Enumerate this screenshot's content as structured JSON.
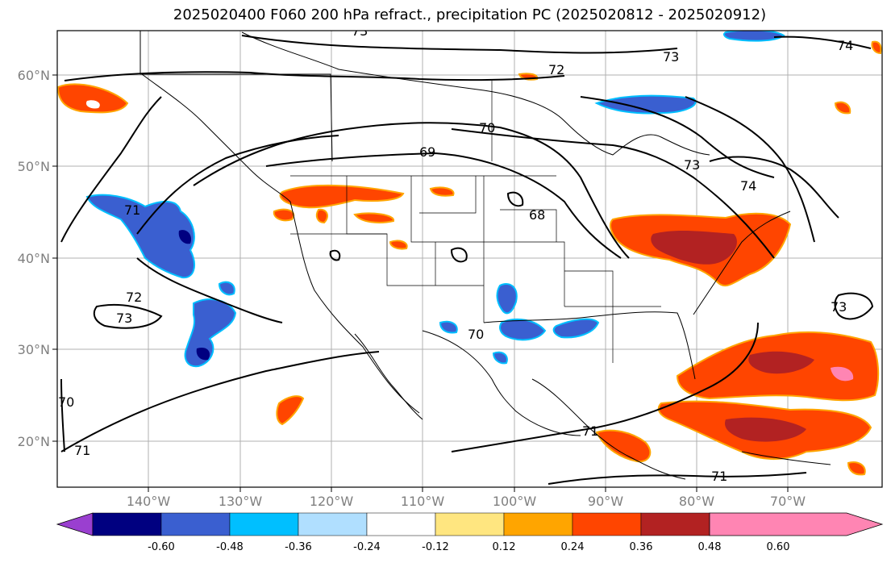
{
  "title": "2025020400 F060 200 hPa refract., precipitation PC (2025020812 - 2025020912)",
  "lat_labels": [
    "20°N",
    "30°N",
    "40°N",
    "50°N",
    "60°N"
  ],
  "lon_labels": [
    "140°W",
    "130°W",
    "120°W",
    "110°W",
    "100°W",
    "90°W",
    "80°W",
    "70°W"
  ],
  "contour_labels": [
    "73",
    "72",
    "73",
    "70",
    "69",
    "68",
    "70",
    "73",
    "74",
    "72",
    "73",
    "71",
    "70",
    "71",
    "71",
    "73",
    "74",
    "71"
  ],
  "colorbar": {
    "ticks": [
      "-0.60",
      "-0.48",
      "-0.36",
      "-0.24",
      "-0.12",
      "0.12",
      "0.24",
      "0.36",
      "0.48",
      "0.60"
    ],
    "colors": [
      "#9a3fd0",
      "#000080",
      "#3a5fd0",
      "#00bfff",
      "#b0dfff",
      "#ffffff",
      "#ffe680",
      "#ffa500",
      "#ff4500",
      "#b22222",
      "#ff85b3"
    ]
  }
}
